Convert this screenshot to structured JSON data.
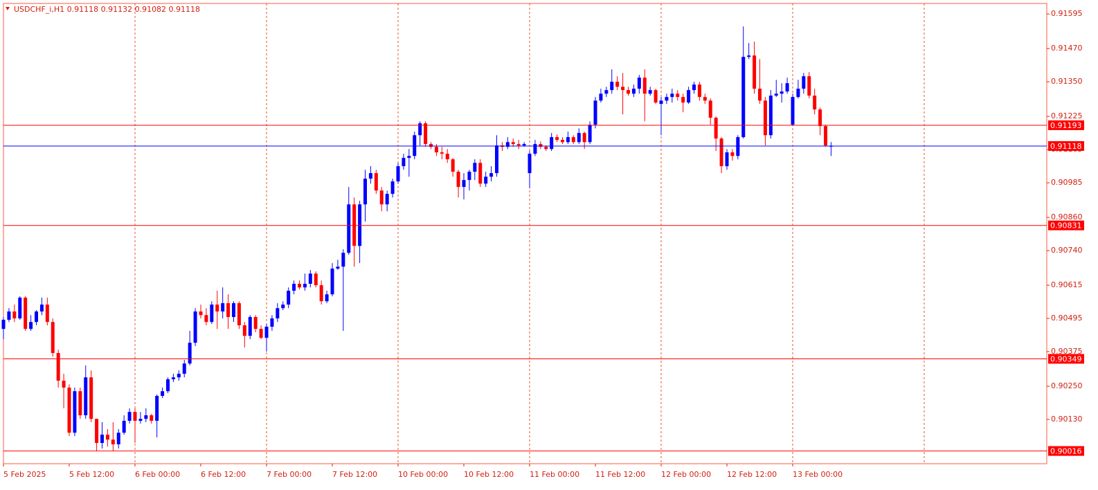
{
  "chart_data": {
    "type": "candlestick",
    "title": "USDCHF_i,H1  0.91118 0.91132 0.91082 0.91118",
    "up_color": "#0000ff",
    "down_color": "#ff0000",
    "grid": true,
    "ylim": [
      0.8997,
      0.91633
    ],
    "yticks": [
      0.91595,
      {
        "value": 0.9147,
        "label": "0.91470"
      },
      {
        "value": 0.9135,
        "label": "0.91350"
      },
      0.91225,
      0.91105,
      0.90985,
      {
        "value": 0.9086,
        "label": "0.90860"
      },
      {
        "value": 0.9074,
        "label": "0.90740"
      },
      0.90615,
      0.90495,
      0.90375,
      {
        "value": 0.9025,
        "label": "0.90250"
      },
      {
        "value": 0.9013,
        "label": "0.90130"
      }
    ],
    "levels": [
      {
        "value": 0.91193,
        "color": "#ff0000"
      },
      {
        "value": 0.91118,
        "color": "#0000ff"
      },
      {
        "value": 0.90831,
        "color": "#ff0000"
      },
      {
        "value": 0.90349,
        "color": "#ff0000"
      },
      {
        "value": 0.90016,
        "color": "#ff0000"
      }
    ],
    "categories": [
      "5 Feb 2025",
      null,
      null,
      null,
      null,
      null,
      null,
      null,
      null,
      null,
      null,
      null,
      "5 Feb 12:00",
      null,
      null,
      null,
      null,
      null,
      null,
      null,
      null,
      null,
      null,
      null,
      "6 Feb 00:00",
      null,
      null,
      null,
      null,
      null,
      null,
      null,
      null,
      null,
      null,
      null,
      "6 Feb 12:00",
      null,
      null,
      null,
      null,
      null,
      null,
      null,
      null,
      null,
      null,
      null,
      "7 Feb 00:00",
      null,
      null,
      null,
      null,
      null,
      null,
      null,
      null,
      null,
      null,
      null,
      "7 Feb 12:00",
      null,
      null,
      null,
      null,
      null,
      null,
      null,
      null,
      null,
      null,
      null,
      "10 Feb 00:00",
      null,
      null,
      null,
      null,
      null,
      null,
      null,
      null,
      null,
      null,
      null,
      "10 Feb 12:00",
      null,
      null,
      null,
      null,
      null,
      null,
      null,
      null,
      null,
      null,
      null,
      "11 Feb 00:00",
      null,
      null,
      null,
      null,
      null,
      null,
      null,
      null,
      null,
      null,
      null,
      "11 Feb 12:00",
      null,
      null,
      null,
      null,
      null,
      null,
      null,
      null,
      null,
      null,
      null,
      "12 Feb 00:00",
      null,
      null,
      null,
      null,
      null,
      null,
      null,
      null,
      null,
      null,
      null,
      "12 Feb 12:00",
      null,
      null,
      null,
      null,
      null,
      null,
      null,
      null,
      null,
      null,
      null,
      "13 Feb 00:00",
      null,
      null,
      null,
      null,
      null,
      null,
      null
    ],
    "open": [
      0.90457,
      0.9049,
      0.9052,
      0.90495,
      0.9057,
      0.90457,
      0.90482,
      0.9052,
      0.90545,
      0.90482,
      0.9037,
      0.9027,
      0.90245,
      0.90082,
      0.90232,
      0.90145,
      0.90282,
      0.90132,
      0.90045,
      0.90075,
      0.90057,
      0.9004,
      0.90082,
      0.90125,
      0.90157,
      0.90125,
      0.90132,
      0.90145,
      0.90125,
      0.90215,
      0.90232,
      0.90275,
      0.90282,
      0.90295,
      0.90332,
      0.90407,
      0.9052,
      0.90507,
      0.90482,
      0.90545,
      0.9052,
      0.9055,
      0.905,
      0.9055,
      0.9047,
      0.90432,
      0.905,
      0.90457,
      0.90425,
      0.90465,
      0.90495,
      0.90532,
      0.90545,
      0.90595,
      0.9062,
      0.90607,
      0.9062,
      0.90657,
      0.90615,
      0.90557,
      0.90582,
      0.90675,
      0.90682,
      0.90732,
      0.90907,
      0.90757,
      0.90907,
      0.91,
      0.9102,
      0.90957,
      0.90907,
      0.90945,
      0.9099,
      0.91045,
      0.91075,
      0.91082,
      0.91157,
      0.912,
      0.91125,
      0.91115,
      0.91095,
      0.9109,
      0.9107,
      0.91025,
      0.9097,
      0.90995,
      0.91025,
      0.91057,
      0.90982,
      0.91007,
      0.9102,
      0.9112,
      0.91115,
      0.91132,
      0.91125,
      0.9112,
      0.9102,
      0.9109,
      0.91125,
      0.91115,
      0.91107,
      0.9115,
      0.9114,
      0.91132,
      0.9115,
      0.91132,
      0.91165,
      0.91132,
      0.91195,
      0.91282,
      0.91307,
      0.9132,
      0.9135,
      0.91332,
      0.9132,
      0.91307,
      0.91325,
      0.91365,
      0.91307,
      0.9132,
      0.9127,
      0.91282,
      0.91295,
      0.91307,
      0.91295,
      0.91275,
      0.9132,
      0.9134,
      0.91295,
      0.91282,
      0.9122,
      0.91145,
      0.91045,
      0.91095,
      0.91082,
      0.9115,
      0.9144,
      0.91445,
      0.91325,
      0.91282,
      0.91157,
      0.913,
      0.91307,
      0.91315,
      0.91195,
      0.91295,
      0.91325,
      0.9137,
      0.913,
      0.9125,
      0.9119,
      0.91118
    ],
    "high": [
      0.905,
      0.90532,
      0.90545,
      0.90575,
      0.90575,
      0.90507,
      0.90525,
      0.9057,
      0.9057,
      0.90495,
      0.90382,
      0.90295,
      0.90257,
      0.90245,
      0.90245,
      0.90325,
      0.90307,
      0.90132,
      0.9012,
      0.90095,
      0.9012,
      0.90095,
      0.90145,
      0.9017,
      0.9017,
      0.90157,
      0.9017,
      0.9015,
      0.9022,
      0.90245,
      0.90282,
      0.90295,
      0.90307,
      0.90345,
      0.9045,
      0.90532,
      0.90545,
      0.90532,
      0.90557,
      0.90595,
      0.90607,
      0.90582,
      0.90557,
      0.90557,
      0.90482,
      0.90507,
      0.90507,
      0.9047,
      0.90475,
      0.90507,
      0.9055,
      0.90557,
      0.90607,
      0.90632,
      0.90632,
      0.90657,
      0.9067,
      0.90665,
      0.90632,
      0.90595,
      0.90695,
      0.90707,
      0.90745,
      0.9097,
      0.90932,
      0.9092,
      0.91032,
      0.91045,
      0.91032,
      0.9097,
      0.90957,
      0.91,
      0.91057,
      0.9109,
      0.91107,
      0.9117,
      0.91207,
      0.91207,
      0.91132,
      0.91125,
      0.91115,
      0.91107,
      0.91075,
      0.91032,
      0.9102,
      0.91032,
      0.9107,
      0.9107,
      0.91025,
      0.91045,
      0.91157,
      0.91132,
      0.9115,
      0.91145,
      0.9114,
      0.91132,
      0.911,
      0.9114,
      0.91135,
      0.9112,
      0.91165,
      0.9116,
      0.9115,
      0.9117,
      0.91157,
      0.91182,
      0.9117,
      0.91207,
      0.91295,
      0.91325,
      0.91332,
      0.91395,
      0.9137,
      0.91382,
      0.91332,
      0.9134,
      0.91375,
      0.91395,
      0.91332,
      0.91325,
      0.91295,
      0.91307,
      0.91325,
      0.9132,
      0.91307,
      0.91332,
      0.9135,
      0.9135,
      0.91307,
      0.9129,
      0.91225,
      0.9115,
      0.91107,
      0.91107,
      0.91157,
      0.9155,
      0.9149,
      0.91495,
      0.91432,
      0.91295,
      0.9132,
      0.91357,
      0.91345,
      0.91365,
      0.91307,
      0.91357,
      0.91382,
      0.91385,
      0.91325,
      0.91257,
      0.91195,
      0.91132
    ],
    "low": [
      0.9042,
      0.90482,
      0.90482,
      0.9049,
      0.9045,
      0.9045,
      0.9047,
      0.90507,
      0.9047,
      0.90357,
      0.90245,
      0.9017,
      0.9007,
      0.9007,
      0.90132,
      0.90132,
      0.9012,
      0.90015,
      0.90025,
      0.90032,
      0.90015,
      0.90025,
      0.90075,
      0.90115,
      0.90045,
      0.90115,
      0.9012,
      0.90115,
      0.90065,
      0.90207,
      0.90225,
      0.90265,
      0.9027,
      0.90282,
      0.90325,
      0.90395,
      0.90495,
      0.9047,
      0.90475,
      0.90457,
      0.90495,
      0.90457,
      0.90482,
      0.90457,
      0.9039,
      0.9042,
      0.90445,
      0.9042,
      0.90375,
      0.9045,
      0.90482,
      0.90525,
      0.90532,
      0.90582,
      0.906,
      0.90595,
      0.90607,
      0.90607,
      0.90545,
      0.9055,
      0.90575,
      0.9067,
      0.9045,
      0.90725,
      0.90682,
      0.90695,
      0.90845,
      0.90982,
      0.90945,
      0.90882,
      0.90882,
      0.90932,
      0.90982,
      0.91032,
      0.91007,
      0.9107,
      0.9112,
      0.91115,
      0.91107,
      0.91082,
      0.9107,
      0.91057,
      0.91007,
      0.90932,
      0.90925,
      0.90957,
      0.90995,
      0.9097,
      0.9097,
      0.9099,
      0.91007,
      0.911,
      0.91107,
      0.91115,
      0.91107,
      0.91115,
      0.90965,
      0.91082,
      0.91107,
      0.911,
      0.911,
      0.91132,
      0.91125,
      0.91125,
      0.91125,
      0.91125,
      0.91107,
      0.91125,
      0.91182,
      0.91275,
      0.91295,
      0.91307,
      0.9132,
      0.91232,
      0.913,
      0.91295,
      0.91307,
      0.91207,
      0.913,
      0.9127,
      0.91157,
      0.9127,
      0.91275,
      0.91282,
      0.9124,
      0.9127,
      0.91307,
      0.91282,
      0.9127,
      0.91195,
      0.911,
      0.9102,
      0.91032,
      0.91065,
      0.9107,
      0.91145,
      0.91432,
      0.91307,
      0.9127,
      0.9112,
      0.91145,
      0.91295,
      0.91275,
      0.91307,
      0.9119,
      0.9129,
      0.91307,
      0.9129,
      0.91232,
      0.91157,
      0.91115,
      0.91082
    ],
    "close": [
      0.9049,
      0.9052,
      0.90495,
      0.9057,
      0.90457,
      0.90482,
      0.9052,
      0.90545,
      0.90482,
      0.9037,
      0.9027,
      0.90245,
      0.90082,
      0.90232,
      0.90145,
      0.90282,
      0.90132,
      0.90045,
      0.90075,
      0.90057,
      0.9004,
      0.90082,
      0.90125,
      0.90157,
      0.90125,
      0.90132,
      0.90145,
      0.90125,
      0.90215,
      0.90232,
      0.90275,
      0.90282,
      0.90295,
      0.90332,
      0.90407,
      0.9052,
      0.90507,
      0.90482,
      0.90545,
      0.9052,
      0.9055,
      0.905,
      0.9055,
      0.9047,
      0.90432,
      0.905,
      0.90457,
      0.90425,
      0.90465,
      0.90495,
      0.90532,
      0.90545,
      0.90595,
      0.9062,
      0.90607,
      0.9062,
      0.90657,
      0.90615,
      0.90557,
      0.90582,
      0.90675,
      0.90682,
      0.90732,
      0.90907,
      0.90757,
      0.90907,
      0.91,
      0.9102,
      0.90957,
      0.90907,
      0.90945,
      0.9099,
      0.91045,
      0.91075,
      0.91082,
      0.91157,
      0.912,
      0.91125,
      0.91115,
      0.91095,
      0.9109,
      0.9107,
      0.91025,
      0.9097,
      0.90995,
      0.91025,
      0.91057,
      0.90982,
      0.91007,
      0.9102,
      0.9112,
      0.91115,
      0.91132,
      0.91125,
      0.9112,
      0.91125,
      0.9109,
      0.91125,
      0.91115,
      0.91107,
      0.9115,
      0.9114,
      0.91132,
      0.9115,
      0.91132,
      0.91165,
      0.91132,
      0.91195,
      0.91282,
      0.91307,
      0.9132,
      0.9135,
      0.91332,
      0.9132,
      0.91307,
      0.91325,
      0.91365,
      0.91307,
      0.9132,
      0.91275,
      0.91282,
      0.91295,
      0.91307,
      0.91295,
      0.91275,
      0.9132,
      0.9134,
      0.91295,
      0.91282,
      0.9122,
      0.91145,
      0.91045,
      0.91095,
      0.91082,
      0.9115,
      0.9144,
      0.91445,
      0.91325,
      0.91282,
      0.91157,
      0.913,
      0.91307,
      0.91315,
      0.91345,
      0.91295,
      0.91325,
      0.9137,
      0.913,
      0.9125,
      0.9119,
      0.9112,
      0.91118
    ]
  }
}
